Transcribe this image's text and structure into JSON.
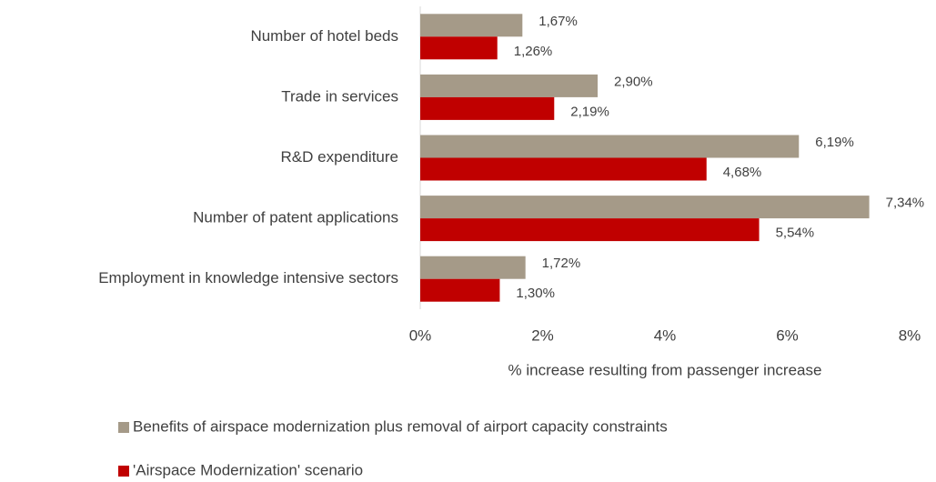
{
  "chart_data": {
    "type": "barh",
    "categories": [
      "Number of hotel beds",
      "Trade in services",
      "R&D expenditure",
      "Number of patent applications",
      "Employment in knowledge intensive sectors"
    ],
    "series": [
      {
        "name": "Benefits of airspace modernization plus removal of airport capacity constraints",
        "color": "#a59a88",
        "values": [
          1.67,
          2.9,
          6.19,
          7.34,
          1.72
        ],
        "value_labels": [
          "1,67%",
          "2,90%",
          "6,19%",
          "7,34%",
          "1,72%"
        ]
      },
      {
        "name": "'Airspace Modernization' scenario",
        "color": "#c00000",
        "values": [
          1.26,
          2.19,
          4.68,
          5.54,
          1.3
        ],
        "value_labels": [
          "1,26%",
          "2,19%",
          "4,68%",
          "5,54%",
          "1,30%"
        ]
      }
    ],
    "xlabel": "% increase resulting from passenger increase",
    "xlim": [
      0,
      8
    ],
    "xticks": [
      {
        "value": 0,
        "label": "0%"
      },
      {
        "value": 2,
        "label": "2%"
      },
      {
        "value": 4,
        "label": "4%"
      },
      {
        "value": 6,
        "label": "6%"
      },
      {
        "value": 8,
        "label": "8%"
      }
    ]
  }
}
